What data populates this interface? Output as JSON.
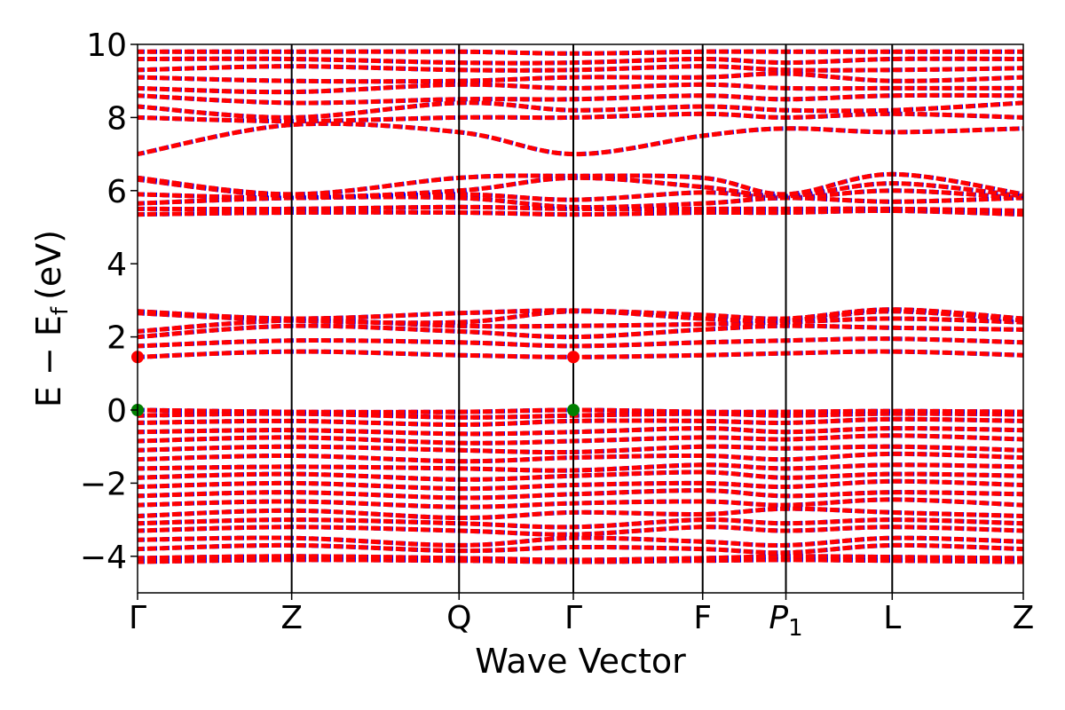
{
  "chart_data": {
    "type": "line",
    "title": "",
    "xlabel": "Wave Vector",
    "ylabel": "E − E",
    "ylabel_subscript": "f",
    "ylabel_unit": "(eV)",
    "ylim": [
      -5,
      10
    ],
    "yticks": [
      {
        "value": -4,
        "label": "−4"
      },
      {
        "value": -2,
        "label": "−2"
      },
      {
        "value": 0,
        "label": "0"
      },
      {
        "value": 2,
        "label": "2"
      },
      {
        "value": 4,
        "label": "4"
      },
      {
        "value": 6,
        "label": "6"
      },
      {
        "value": 8,
        "label": "8"
      },
      {
        "value": 10,
        "label": "10"
      }
    ],
    "kpoints": [
      {
        "label": "Γ",
        "pos": 0.0
      },
      {
        "label": "Z",
        "pos": 0.174
      },
      {
        "label": "Q",
        "pos": 0.363
      },
      {
        "label": "Γ",
        "pos": 0.492
      },
      {
        "label": "F",
        "pos": 0.638
      },
      {
        "label": "P",
        "sub": "1",
        "pos": 0.732
      },
      {
        "label": "L",
        "pos": 0.852
      },
      {
        "label": "Z",
        "pos": 1.0
      }
    ],
    "band_colors": {
      "spin_up": "#ff0000",
      "spin_down": "#0000ff"
    },
    "band_style": "red and blue dashed overlay",
    "markers": [
      {
        "label": "CBM",
        "x": 0.0,
        "y": 1.45,
        "color": "#ff0000"
      },
      {
        "label": "CBM",
        "x": 0.492,
        "y": 1.45,
        "color": "#ff0000"
      },
      {
        "label": "VBM",
        "x": 0.0,
        "y": 0.0,
        "color": "#008000"
      },
      {
        "label": "VBM",
        "x": 0.492,
        "y": 0.0,
        "color": "#008000"
      }
    ],
    "bands": [
      [
        -4.15,
        -4.1,
        -4.12,
        -4.15,
        -4.12,
        -4.1,
        -4.12,
        -4.15
      ],
      [
        -4.05,
        -4.0,
        -4.05,
        -4.1,
        -4.05,
        -4.0,
        -4.02,
        -4.05
      ],
      [
        -3.8,
        -3.7,
        -3.85,
        -3.75,
        -3.8,
        -3.9,
        -3.7,
        -3.8
      ],
      [
        -3.55,
        -3.5,
        -3.7,
        -3.5,
        -3.6,
        -3.7,
        -3.5,
        -3.6
      ],
      [
        -3.3,
        -3.2,
        -3.3,
        -3.4,
        -3.2,
        -3.3,
        -3.2,
        -3.3
      ],
      [
        -3.1,
        -3.0,
        -3.1,
        -3.2,
        -3.0,
        -3.1,
        -3.0,
        -3.1
      ],
      [
        -2.9,
        -2.75,
        -2.95,
        -2.8,
        -2.85,
        -2.7,
        -2.8,
        -2.9
      ],
      [
        -2.6,
        -2.5,
        -2.65,
        -2.55,
        -2.5,
        -2.6,
        -2.45,
        -2.6
      ],
      [
        -2.35,
        -2.25,
        -2.4,
        -2.3,
        -2.2,
        -2.35,
        -2.25,
        -2.3
      ],
      [
        -2.1,
        -2.0,
        -2.15,
        -2.05,
        -2.0,
        -2.1,
        -1.95,
        -2.05
      ],
      [
        -1.85,
        -1.75,
        -1.9,
        -1.8,
        -1.7,
        -1.85,
        -1.75,
        -1.8
      ],
      [
        -1.6,
        -1.55,
        -1.6,
        -1.65,
        -1.5,
        -1.6,
        -1.5,
        -1.55
      ],
      [
        -1.35,
        -1.25,
        -1.4,
        -1.3,
        -1.25,
        -1.35,
        -1.2,
        -1.3
      ],
      [
        -1.1,
        -1.0,
        -1.1,
        -1.15,
        -1.0,
        -1.05,
        -1.0,
        -1.1
      ],
      [
        -0.85,
        -0.75,
        -0.9,
        -0.85,
        -0.75,
        -0.8,
        -0.7,
        -0.8
      ],
      [
        -0.6,
        -0.55,
        -0.65,
        -0.6,
        -0.5,
        -0.6,
        -0.5,
        -0.55
      ],
      [
        -0.35,
        -0.3,
        -0.4,
        -0.3,
        -0.3,
        -0.35,
        -0.25,
        -0.3
      ],
      [
        -0.15,
        -0.1,
        -0.2,
        -0.15,
        -0.1,
        -0.15,
        -0.1,
        -0.12
      ],
      [
        0.0,
        -0.05,
        -0.05,
        0.0,
        -0.05,
        -0.05,
        -0.03,
        -0.05
      ],
      [
        1.45,
        1.6,
        1.5,
        1.45,
        1.5,
        1.55,
        1.6,
        1.5
      ],
      [
        1.75,
        1.9,
        1.85,
        1.75,
        1.85,
        1.9,
        1.95,
        1.85
      ],
      [
        2.0,
        2.3,
        2.15,
        2.0,
        2.2,
        2.3,
        2.25,
        2.2
      ],
      [
        2.15,
        2.45,
        2.3,
        2.3,
        2.35,
        2.4,
        2.5,
        2.4
      ],
      [
        2.65,
        2.45,
        2.4,
        2.7,
        2.5,
        2.45,
        2.7,
        2.45
      ],
      [
        2.7,
        2.5,
        2.65,
        2.72,
        2.6,
        2.5,
        2.75,
        2.5
      ],
      [
        5.35,
        5.4,
        5.4,
        5.35,
        5.4,
        5.4,
        5.45,
        5.35
      ],
      [
        5.5,
        5.5,
        5.55,
        5.5,
        5.5,
        5.5,
        5.5,
        5.45
      ],
      [
        5.65,
        5.8,
        5.8,
        5.55,
        5.65,
        5.8,
        5.7,
        5.8
      ],
      [
        5.9,
        5.8,
        5.9,
        5.75,
        5.95,
        5.8,
        6.0,
        5.8
      ],
      [
        6.3,
        5.85,
        6.0,
        6.35,
        6.1,
        5.85,
        6.2,
        5.85
      ],
      [
        6.35,
        5.9,
        6.35,
        6.4,
        6.35,
        5.9,
        6.45,
        5.9
      ],
      [
        7.0,
        7.8,
        7.6,
        7.0,
        7.5,
        7.7,
        7.6,
        7.7
      ],
      [
        8.0,
        7.9,
        8.0,
        8.0,
        8.1,
        8.0,
        8.1,
        8.0
      ],
      [
        8.3,
        8.0,
        8.4,
        8.2,
        8.3,
        8.2,
        8.2,
        8.4
      ],
      [
        8.6,
        8.4,
        8.5,
        8.5,
        8.6,
        8.5,
        8.6,
        8.6
      ],
      [
        8.8,
        8.7,
        8.9,
        8.8,
        8.9,
        8.8,
        8.8,
        8.8
      ],
      [
        9.1,
        9.0,
        9.0,
        9.1,
        9.1,
        9.2,
        9.0,
        9.1
      ],
      [
        9.3,
        9.4,
        9.3,
        9.3,
        9.4,
        9.3,
        9.3,
        9.35
      ],
      [
        9.6,
        9.6,
        9.5,
        9.5,
        9.6,
        9.5,
        9.6,
        9.6
      ],
      [
        9.8,
        9.8,
        9.8,
        9.75,
        9.8,
        9.8,
        9.8,
        9.8
      ]
    ]
  }
}
